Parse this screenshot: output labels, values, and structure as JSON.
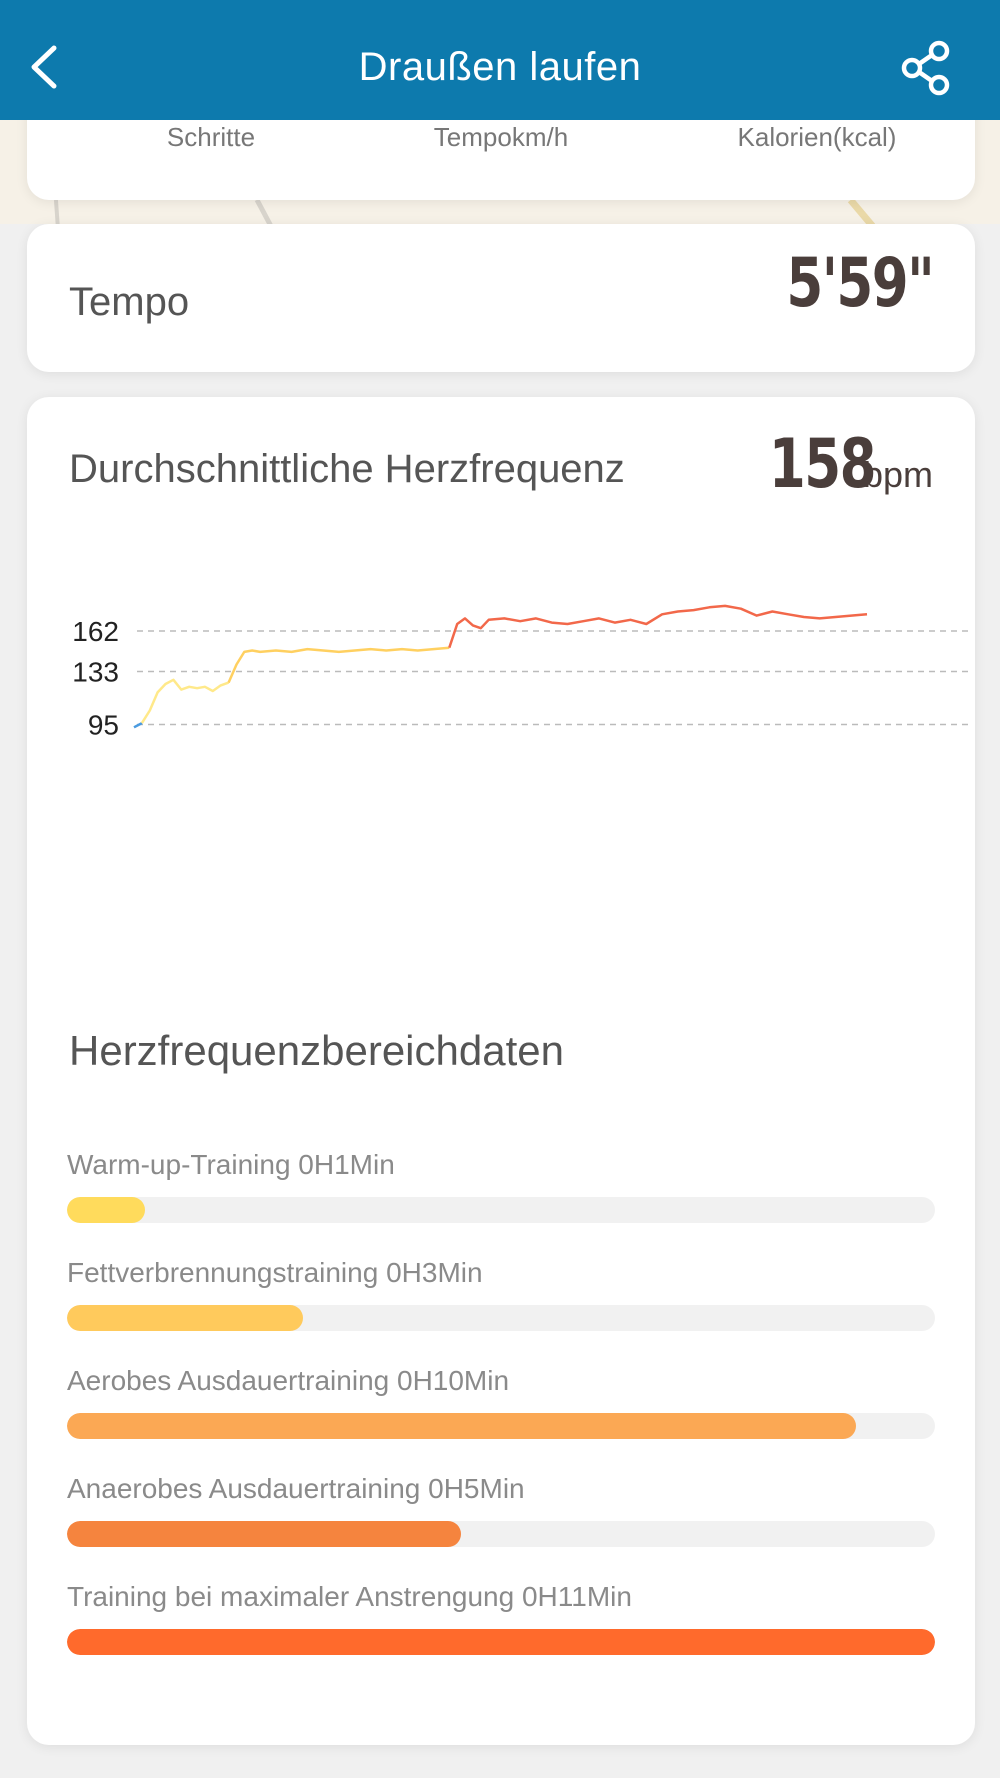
{
  "header": {
    "title": "Draußen laufen",
    "back_icon": "chevron-left-icon",
    "share_icon": "share-icon"
  },
  "stats": {
    "labels": [
      "Schritte",
      "Tempokm/h",
      "Kalorien(kcal)"
    ]
  },
  "tempo": {
    "label": "Tempo",
    "value": "5'59\""
  },
  "heart_rate": {
    "title": "Durchschnittliche Herzfrequenz",
    "value": "158",
    "unit": "bpm"
  },
  "chart_data": {
    "type": "line",
    "title": "",
    "y_reference_lines": [
      162,
      133,
      95
    ],
    "y_tick_labels": [
      "162",
      "133",
      "95"
    ],
    "ylim": [
      90,
      185
    ],
    "grid": true,
    "colors": {
      "blue": "#4a9be0",
      "yellow_light": "#ffe98a",
      "yellow": "#ffd060",
      "red": "#f2684a"
    },
    "series": [
      {
        "color_role": "blue",
        "points": [
          [
            0,
            93
          ],
          [
            1,
            96
          ]
        ]
      },
      {
        "color_role": "yellow_light",
        "points": [
          [
            1,
            96
          ],
          [
            2,
            105
          ],
          [
            3,
            118
          ],
          [
            4,
            124
          ],
          [
            5,
            127
          ],
          [
            6,
            120
          ],
          [
            7,
            122
          ],
          [
            8,
            121
          ],
          [
            9,
            122
          ],
          [
            10,
            119
          ],
          [
            11,
            123
          ],
          [
            12,
            125
          ]
        ]
      },
      {
        "color_role": "yellow",
        "points": [
          [
            12,
            125
          ],
          [
            13,
            138
          ],
          [
            14,
            147
          ],
          [
            15,
            148
          ],
          [
            16,
            147
          ],
          [
            18,
            148
          ],
          [
            20,
            147
          ],
          [
            22,
            149
          ],
          [
            24,
            148
          ],
          [
            26,
            147
          ],
          [
            28,
            148
          ],
          [
            30,
            149
          ],
          [
            32,
            148
          ],
          [
            34,
            149
          ],
          [
            36,
            148
          ],
          [
            38,
            149
          ],
          [
            40,
            150
          ]
        ]
      },
      {
        "color_role": "red",
        "points": [
          [
            40,
            150
          ],
          [
            41,
            167
          ],
          [
            42,
            171
          ],
          [
            43,
            166
          ],
          [
            44,
            164
          ],
          [
            45,
            170
          ],
          [
            47,
            171
          ],
          [
            49,
            169
          ],
          [
            51,
            171
          ],
          [
            53,
            168
          ],
          [
            55,
            167
          ],
          [
            57,
            169
          ],
          [
            59,
            171
          ],
          [
            61,
            168
          ],
          [
            63,
            170
          ],
          [
            65,
            167
          ],
          [
            67,
            174
          ],
          [
            69,
            176
          ],
          [
            71,
            177
          ],
          [
            73,
            179
          ],
          [
            75,
            180
          ],
          [
            77,
            178
          ],
          [
            79,
            173
          ],
          [
            81,
            176
          ],
          [
            83,
            174
          ],
          [
            85,
            172
          ],
          [
            87,
            171
          ],
          [
            89,
            172
          ],
          [
            91,
            173
          ],
          [
            93,
            174
          ]
        ]
      }
    ]
  },
  "zones": {
    "title": "Herzfrequenzbereichdaten",
    "items": [
      {
        "label": "Warm-up-Training 0H1Min",
        "fraction": 0.09,
        "color": "#ffdb5c"
      },
      {
        "label": "Fettverbrennungstraining 0H3Min",
        "fraction": 0.272,
        "color": "#ffca5c"
      },
      {
        "label": "Aerobes Ausdauertraining 0H10Min",
        "fraction": 0.909,
        "color": "#fba854"
      },
      {
        "label": "Anaerobes Ausdauertraining 0H5Min",
        "fraction": 0.454,
        "color": "#f5843e"
      },
      {
        "label": "Training bei maximaler Anstrengung 0H11Min",
        "fraction": 1.0,
        "color": "#ff6a2c"
      }
    ]
  }
}
